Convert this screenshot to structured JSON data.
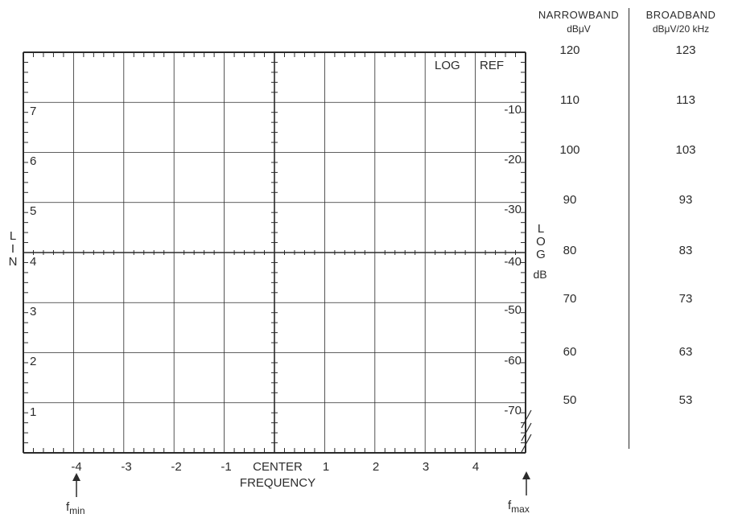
{
  "graticule": {
    "lin_axis_label": [
      "L",
      "I",
      "N"
    ],
    "lin_divisions": [
      "7",
      "6",
      "5",
      "4",
      "3",
      "2",
      "1"
    ],
    "log_ref_label": "LOG",
    "ref_label": "REF",
    "log_db_values": [
      "-10",
      "-20",
      "-30",
      "-40",
      "-50",
      "-60",
      "-70"
    ],
    "log_axis_label": [
      "L",
      "O",
      "G"
    ],
    "log_axis_unit": "dB",
    "frequency_ticks": [
      "-4",
      "-3",
      "-2",
      "-1",
      "1",
      "2",
      "3",
      "4"
    ],
    "center_label": "CENTER",
    "frequency_label": "FREQUENCY",
    "fmin": {
      "base": "f",
      "sub": "min"
    },
    "fmax": {
      "base": "f",
      "sub": "max"
    }
  },
  "scale_table": {
    "narrowband": {
      "title": "NARROWBAND",
      "unit": "dBμV",
      "values": [
        "120",
        "110",
        "100",
        "90",
        "80",
        "70",
        "60",
        "50"
      ]
    },
    "broadband": {
      "title": "BROADBAND",
      "unit": "dBμV/20 kHz",
      "values": [
        "123",
        "113",
        "103",
        "93",
        "83",
        "73",
        "63",
        "53"
      ]
    }
  },
  "colors": {
    "ink": "#2b2b2b",
    "paper": "#ffffff"
  }
}
